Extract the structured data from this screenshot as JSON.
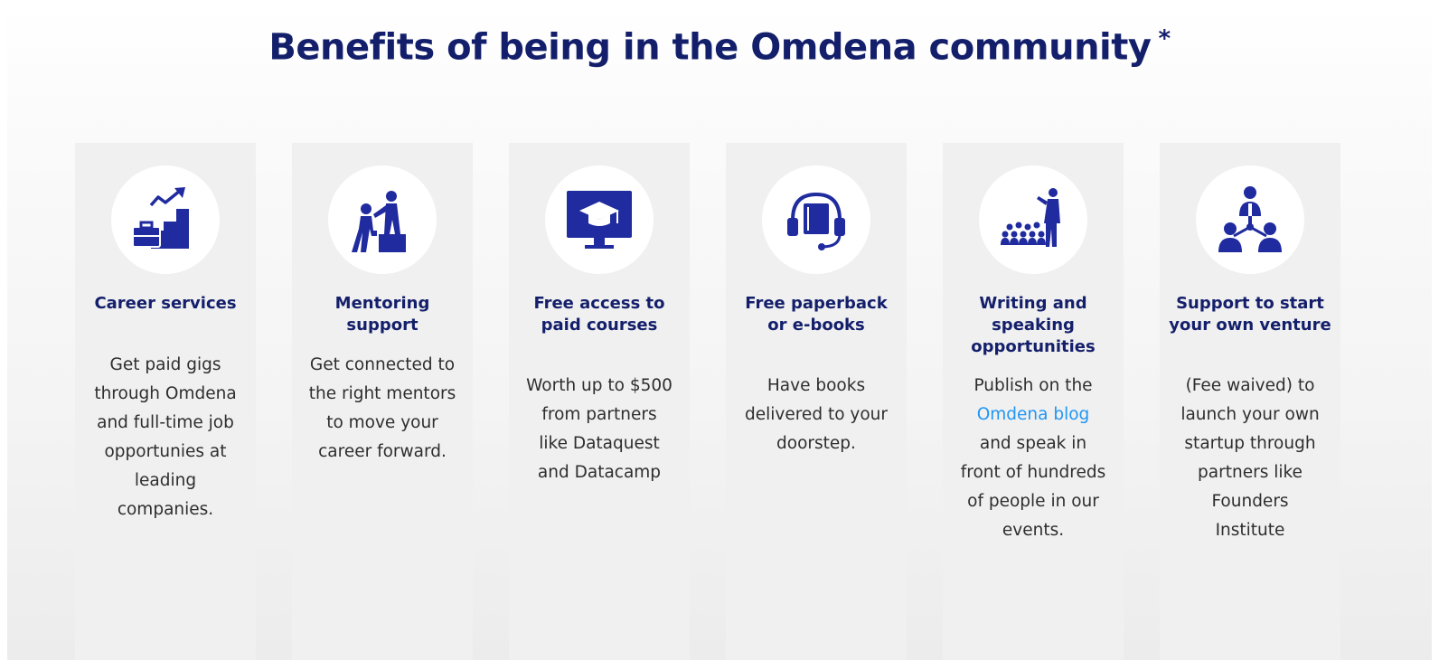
{
  "heading": {
    "text": "Benefits of being in the Omdena community",
    "asterisk": "*"
  },
  "brand_colors": {
    "title": "#141f6b",
    "icon": "#1f2b9e",
    "link": "#2196f3"
  },
  "cards": [
    {
      "icon": "career-growth-icon",
      "title": "Career services",
      "body": "Get paid gigs through Omdena and full-time job opportunies at leading companies."
    },
    {
      "icon": "mentoring-icon",
      "title": "Mentoring support",
      "body": "Get connected to the right mentors to move your career forward."
    },
    {
      "icon": "online-course-icon",
      "title": "Free access to paid courses",
      "body": "Worth up to $500 from partners like Dataquest and Datacamp"
    },
    {
      "icon": "audiobook-icon",
      "title": "Free paperback or e-books",
      "body": "Have books delivered to your doorstep."
    },
    {
      "icon": "public-speaking-icon",
      "title": "Writing and speaking opportunities",
      "body_before": "Publish on the",
      "link": "Omdena blog",
      "body_after": "and speak in front of hundreds of people in our events."
    },
    {
      "icon": "team-network-icon",
      "title": "Support to start your own venture",
      "body": "(Fee waived) to launch your own startup through partners like Founders Institute"
    }
  ]
}
